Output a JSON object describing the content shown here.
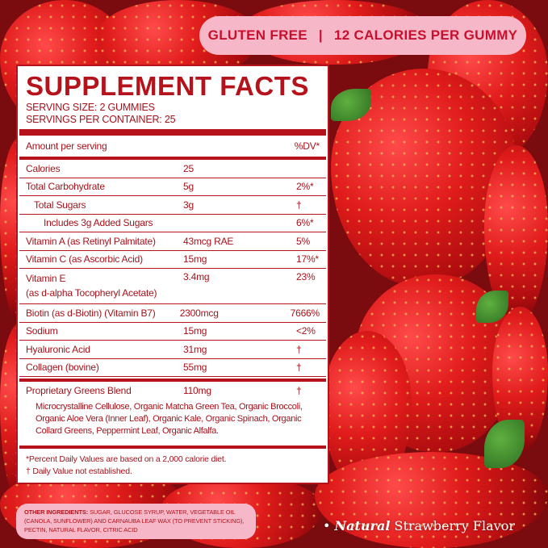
{
  "badges": {
    "left": "GLUTEN FREE",
    "divider": "|",
    "right": "12 CALORIES PER GUMMY"
  },
  "label": {
    "title": "SUPPLEMENT FACTS",
    "serving_size": "SERVING SIZE: 2 GUMMIES",
    "servings_per_container": "SERVINGS PER CONTAINER: 25",
    "header": {
      "amount": "Amount per serving",
      "dv": "%DV*"
    },
    "rows": [
      {
        "name": "Calories",
        "amount": "25",
        "dv": ""
      },
      {
        "name": "Total Carbohydrate",
        "amount": "5g",
        "dv": "2%*"
      },
      {
        "name": "Total Sugars",
        "amount": "3g",
        "dv": "†"
      },
      {
        "name": "Includes 3g Added Sugars",
        "amount": "",
        "dv": "6%*"
      },
      {
        "name": "Vitamin A (as Retinyl Palmitate)",
        "amount": "43mcg RAE",
        "dv": "5%"
      },
      {
        "name": "Vitamin C (as Ascorbic Acid)",
        "amount": "15mg",
        "dv": "17%*"
      },
      {
        "name": "Vitamin E",
        "name2": "(as d-alpha Tocopheryl Acetate)",
        "amount": "3.4mg",
        "dv": "23%"
      },
      {
        "name": "Biotin (as d-Biotin) (Vitamin B7)",
        "amount": "2300mcg",
        "dv": "7666%"
      },
      {
        "name": "Sodium",
        "amount": "15mg",
        "dv": "<2%"
      },
      {
        "name": "Hyaluronic Acid",
        "amount": "31mg",
        "dv": "†"
      },
      {
        "name": "Collagen (bovine)",
        "amount": "55mg",
        "dv": "†"
      }
    ],
    "blend": {
      "name": "Proprietary Greens Blend",
      "amount": "110mg",
      "dv": "†",
      "ingredients": "Microcrystalline Cellulose, Organic Matcha Green Tea, Organic Broccoli, Organic Aloe Vera (Inner Leaf), Organic Kale, Organic Spinach, Organic Collard Greens, Peppermint Leaf, Organic Alfalfa."
    },
    "footnotes": [
      "*Percent Daily Values are based on a 2,000 calorie diet.",
      "† Daily Value not established."
    ]
  },
  "other_ingredients": {
    "label": "OTHER INGREDIENTS:",
    "text": "SUGAR, GLUCOSE SYRUP, WATER, VEGETABLE OIL (CANOLA, SUNFLOWER) AND CARNAUBA LEAF WAX (TO PREVENT STICKING), PECTIN, NATURAL FLAVOR, CITRIC ACID"
  },
  "flavor": {
    "bullet": "•",
    "natural": "Natural",
    "rest": "Strawberry Flavor"
  },
  "colors": {
    "label_red": "#b5121b",
    "pill_pink": "#f6b8c8"
  }
}
